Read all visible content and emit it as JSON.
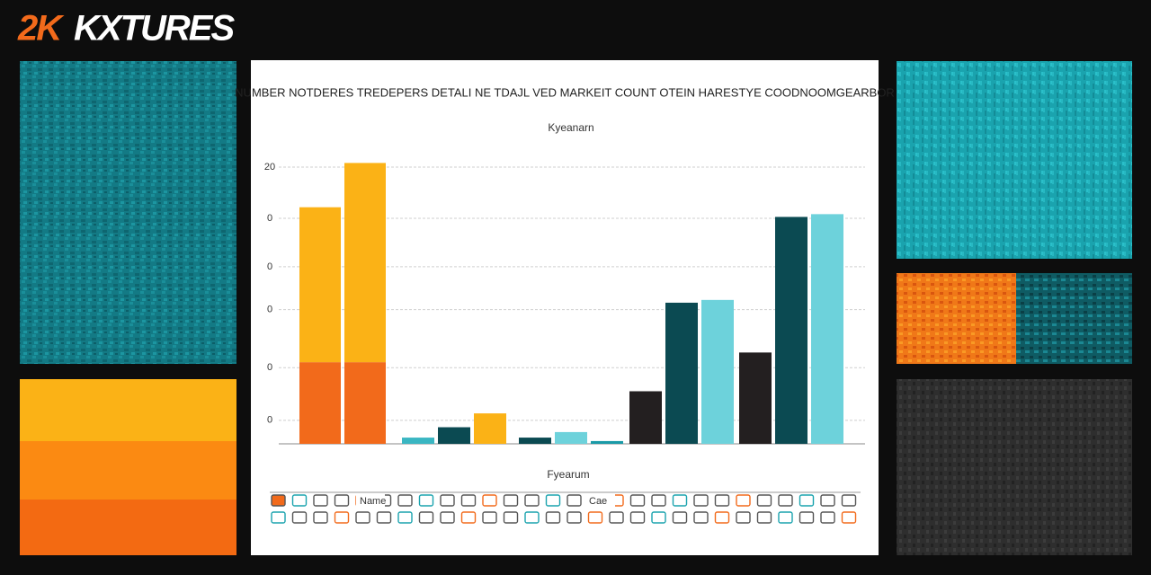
{
  "logo": {
    "mark": "2K",
    "word": "KXTURES"
  },
  "chart_data": {
    "type": "bar",
    "title": "NUMBER NOTDERES TREDEPERS DETALI NE TDAJL VED MARKEIT COUNT OTEIN HARESTYE COODNOOMGEARBOR",
    "subtitle": "Kyeanarn",
    "x_label": "Fyearum",
    "categories": [
      null,
      null,
      null,
      null,
      null
    ],
    "ylim": [
      0,
      22
    ],
    "yticks": [
      20,
      {
        "value": 16.3,
        "label": "0"
      },
      {
        "value": 12.8,
        "label": "0"
      },
      {
        "value": 9.7,
        "label": "0"
      },
      {
        "value": 5.5,
        "label": "0"
      },
      {
        "value": 1.7,
        "label": "0"
      }
    ],
    "grid": true,
    "series": [
      {
        "color": "#f26a1b",
        "values": [
          5.9,
          null,
          null,
          null,
          null
        ]
      },
      {
        "color": "#fbb216",
        "stacked": true,
        "values": [
          11.2,
          null,
          null,
          null,
          null
        ]
      },
      {
        "color": "#f26a1b",
        "values": [
          5.9,
          null,
          null,
          null,
          null
        ]
      },
      {
        "color": "#fbb216",
        "stacked": true,
        "values": [
          14.4,
          null,
          null,
          null,
          null
        ]
      },
      {
        "color": "#3ab6c2",
        "values": [
          null,
          0.45,
          null,
          null,
          null
        ]
      },
      {
        "color": "#231f20",
        "values": [
          null,
          null,
          null,
          3.8,
          6.6
        ]
      },
      {
        "color": "#0b4a52",
        "values": [
          null,
          1.2,
          0.45,
          10.2,
          16.4
        ]
      },
      {
        "color": "#fbb216",
        "values": [
          null,
          2.2,
          null,
          null,
          null
        ]
      },
      {
        "color": "#6dd2db",
        "values": [
          null,
          null,
          0.85,
          10.4,
          16.6
        ]
      },
      {
        "color": "#1a9aa7",
        "values": [
          null,
          null,
          0.2,
          null,
          null
        ]
      }
    ],
    "legend_texts": [
      "Name",
      "Cae"
    ]
  }
}
